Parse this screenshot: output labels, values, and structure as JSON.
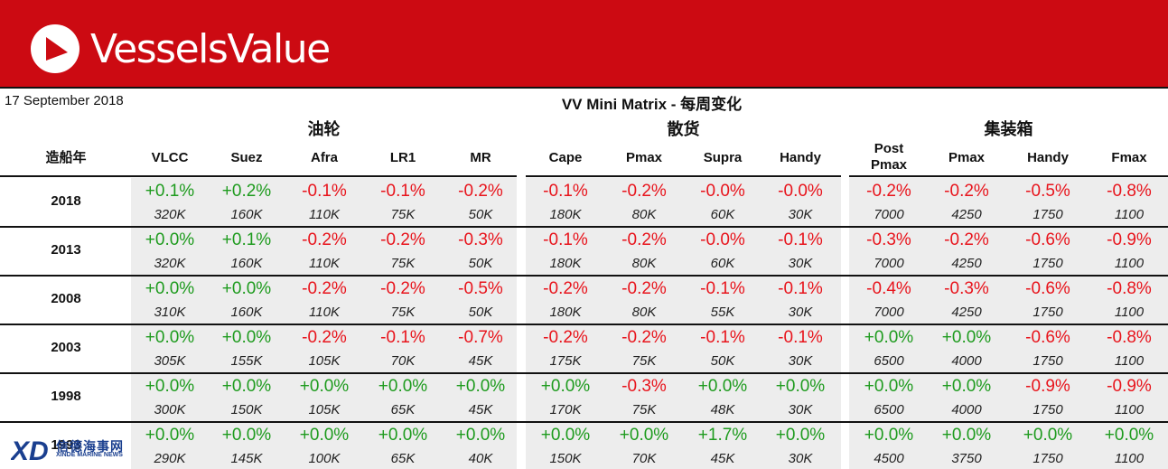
{
  "header": {
    "brand": "VesselsValue",
    "logo_icon": "vesselsvalue-logo-icon",
    "brand_color": "#cc0a12"
  },
  "report": {
    "date": "17 September 2018",
    "title": "VV Mini Matrix - 每周变化"
  },
  "groups": [
    "油轮",
    "散货",
    "集装箱"
  ],
  "year_label": "造船年",
  "columns": [
    "VLCC",
    "Suez",
    "Afra",
    "LR1",
    "MR",
    "Cape",
    "Pmax",
    "Supra",
    "Handy",
    "Post\nPmax",
    "Pmax",
    "Handy",
    "Fmax"
  ],
  "rows": [
    {
      "year": "2018",
      "changes": [
        "+0.1%",
        "+0.2%",
        "-0.1%",
        "-0.1%",
        "-0.2%",
        "-0.1%",
        "-0.2%",
        "-0.0%",
        "-0.0%",
        "-0.2%",
        "-0.2%",
        "-0.5%",
        "-0.8%"
      ],
      "sizes": [
        "320K",
        "160K",
        "110K",
        "75K",
        "50K",
        "180K",
        "80K",
        "60K",
        "30K",
        "7000",
        "4250",
        "1750",
        "1100"
      ]
    },
    {
      "year": "2013",
      "changes": [
        "+0.0%",
        "+0.1%",
        "-0.2%",
        "-0.2%",
        "-0.3%",
        "-0.1%",
        "-0.2%",
        "-0.0%",
        "-0.1%",
        "-0.3%",
        "-0.2%",
        "-0.6%",
        "-0.9%"
      ],
      "sizes": [
        "320K",
        "160K",
        "110K",
        "75K",
        "50K",
        "180K",
        "80K",
        "60K",
        "30K",
        "7000",
        "4250",
        "1750",
        "1100"
      ]
    },
    {
      "year": "2008",
      "changes": [
        "+0.0%",
        "+0.0%",
        "-0.2%",
        "-0.2%",
        "-0.5%",
        "-0.2%",
        "-0.2%",
        "-0.1%",
        "-0.1%",
        "-0.4%",
        "-0.3%",
        "-0.6%",
        "-0.8%"
      ],
      "sizes": [
        "310K",
        "160K",
        "110K",
        "75K",
        "50K",
        "180K",
        "80K",
        "55K",
        "30K",
        "7000",
        "4250",
        "1750",
        "1100"
      ]
    },
    {
      "year": "2003",
      "changes": [
        "+0.0%",
        "+0.0%",
        "-0.2%",
        "-0.1%",
        "-0.7%",
        "-0.2%",
        "-0.2%",
        "-0.1%",
        "-0.1%",
        "+0.0%",
        "+0.0%",
        "-0.6%",
        "-0.8%"
      ],
      "sizes": [
        "305K",
        "155K",
        "105K",
        "70K",
        "45K",
        "175K",
        "75K",
        "50K",
        "30K",
        "6500",
        "4000",
        "1750",
        "1100"
      ]
    },
    {
      "year": "1998",
      "changes": [
        "+0.0%",
        "+0.0%",
        "+0.0%",
        "+0.0%",
        "+0.0%",
        "+0.0%",
        "-0.3%",
        "+0.0%",
        "+0.0%",
        "+0.0%",
        "+0.0%",
        "-0.9%",
        "-0.9%"
      ],
      "sizes": [
        "300K",
        "150K",
        "105K",
        "65K",
        "45K",
        "170K",
        "75K",
        "48K",
        "30K",
        "6500",
        "4000",
        "1750",
        "1100"
      ]
    },
    {
      "year": "1993",
      "changes": [
        "+0.0%",
        "+0.0%",
        "+0.0%",
        "+0.0%",
        "+0.0%",
        "+0.0%",
        "+0.0%",
        "+1.7%",
        "+0.0%",
        "+0.0%",
        "+0.0%",
        "+0.0%",
        "+0.0%"
      ],
      "sizes": [
        "290K",
        "145K",
        "100K",
        "65K",
        "40K",
        "150K",
        "70K",
        "45K",
        "30K",
        "4500",
        "3750",
        "1750",
        "1100"
      ]
    }
  ],
  "colors": {
    "positive": "#1e9b1e",
    "negative": "#e8141c",
    "panel": "#ededed"
  },
  "watermark": {
    "text": "信德海事网",
    "sub": "XINDE MARINE NEWS",
    "icon": "xinde-logo-icon"
  }
}
